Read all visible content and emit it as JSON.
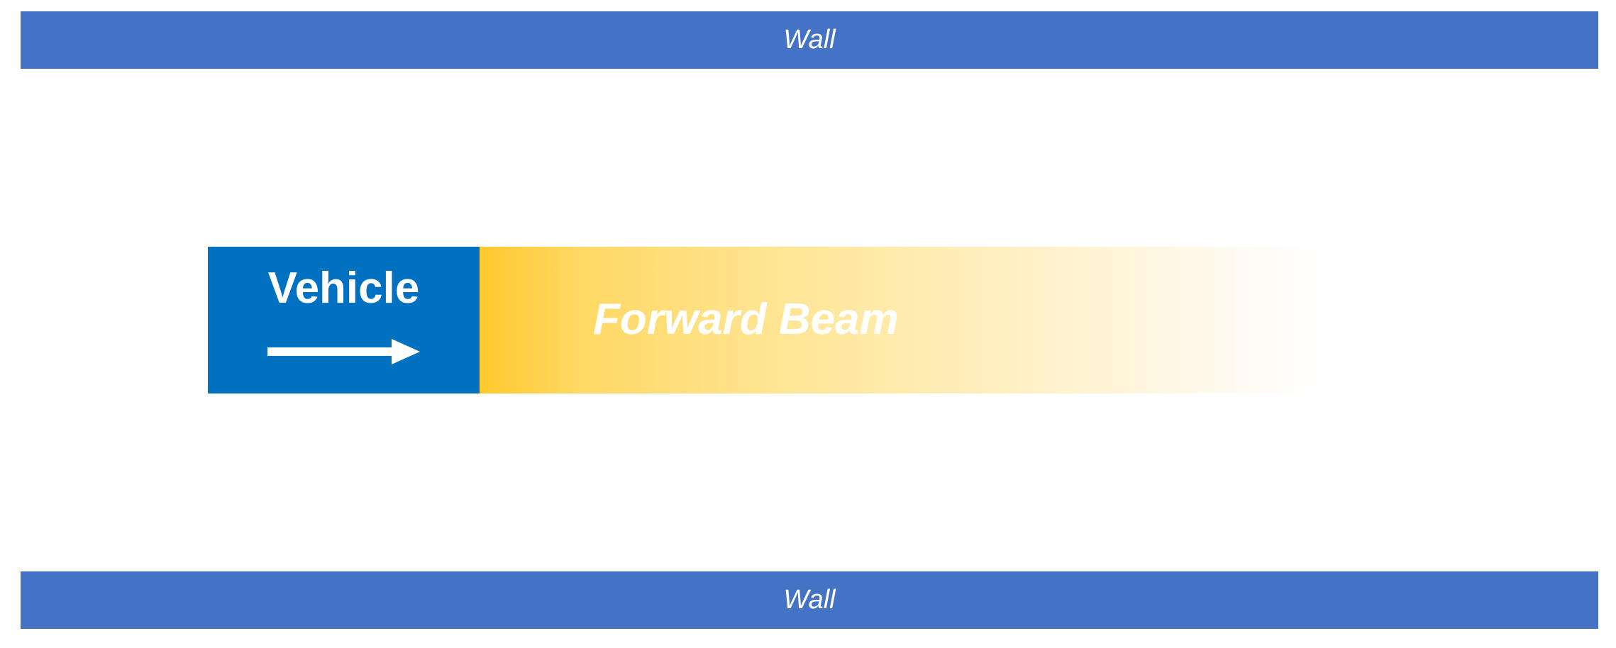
{
  "walls": {
    "top_label": "Wall",
    "bottom_label": "Wall"
  },
  "vehicle": {
    "label": "Vehicle",
    "direction_icon": "right-arrow-icon"
  },
  "beam": {
    "label": "Forward Beam"
  },
  "colors": {
    "wall": "#4472c4",
    "vehicle": "#0070c0",
    "beam_start": "#ffc82e",
    "beam_end": "#ffffff",
    "text": "#ffffff"
  }
}
